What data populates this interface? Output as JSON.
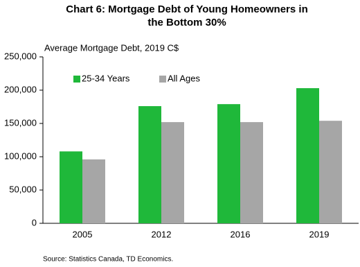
{
  "chart_data": {
    "type": "bar",
    "title": "Chart 6: Mortgage Debt of Young Homeowners in the Bottom 30%",
    "y_axis_label": "Average Mortgage Debt, 2019 C$",
    "source": "Source: Statistics Canada, TD Economics.",
    "categories": [
      "2005",
      "2012",
      "2016",
      "2019"
    ],
    "series": [
      {
        "name": "25-34 Years",
        "color": "#1fb83a",
        "values": [
          108000,
          176000,
          179000,
          203000
        ]
      },
      {
        "name": "All Ages",
        "color": "#a6a6a6",
        "values": [
          96000,
          152000,
          152000,
          154000
        ]
      }
    ],
    "ylim": [
      0,
      250000
    ],
    "yticks": [
      0,
      {
        "value": 50000,
        "label": "50,000"
      },
      {
        "value": 100000,
        "label": "100,000"
      },
      {
        "value": 150000,
        "label": "150,000"
      },
      {
        "value": 200000,
        "label": "200,000"
      },
      {
        "value": 250000,
        "label": "250,000"
      }
    ],
    "grid": false,
    "legend": "top-left"
  }
}
